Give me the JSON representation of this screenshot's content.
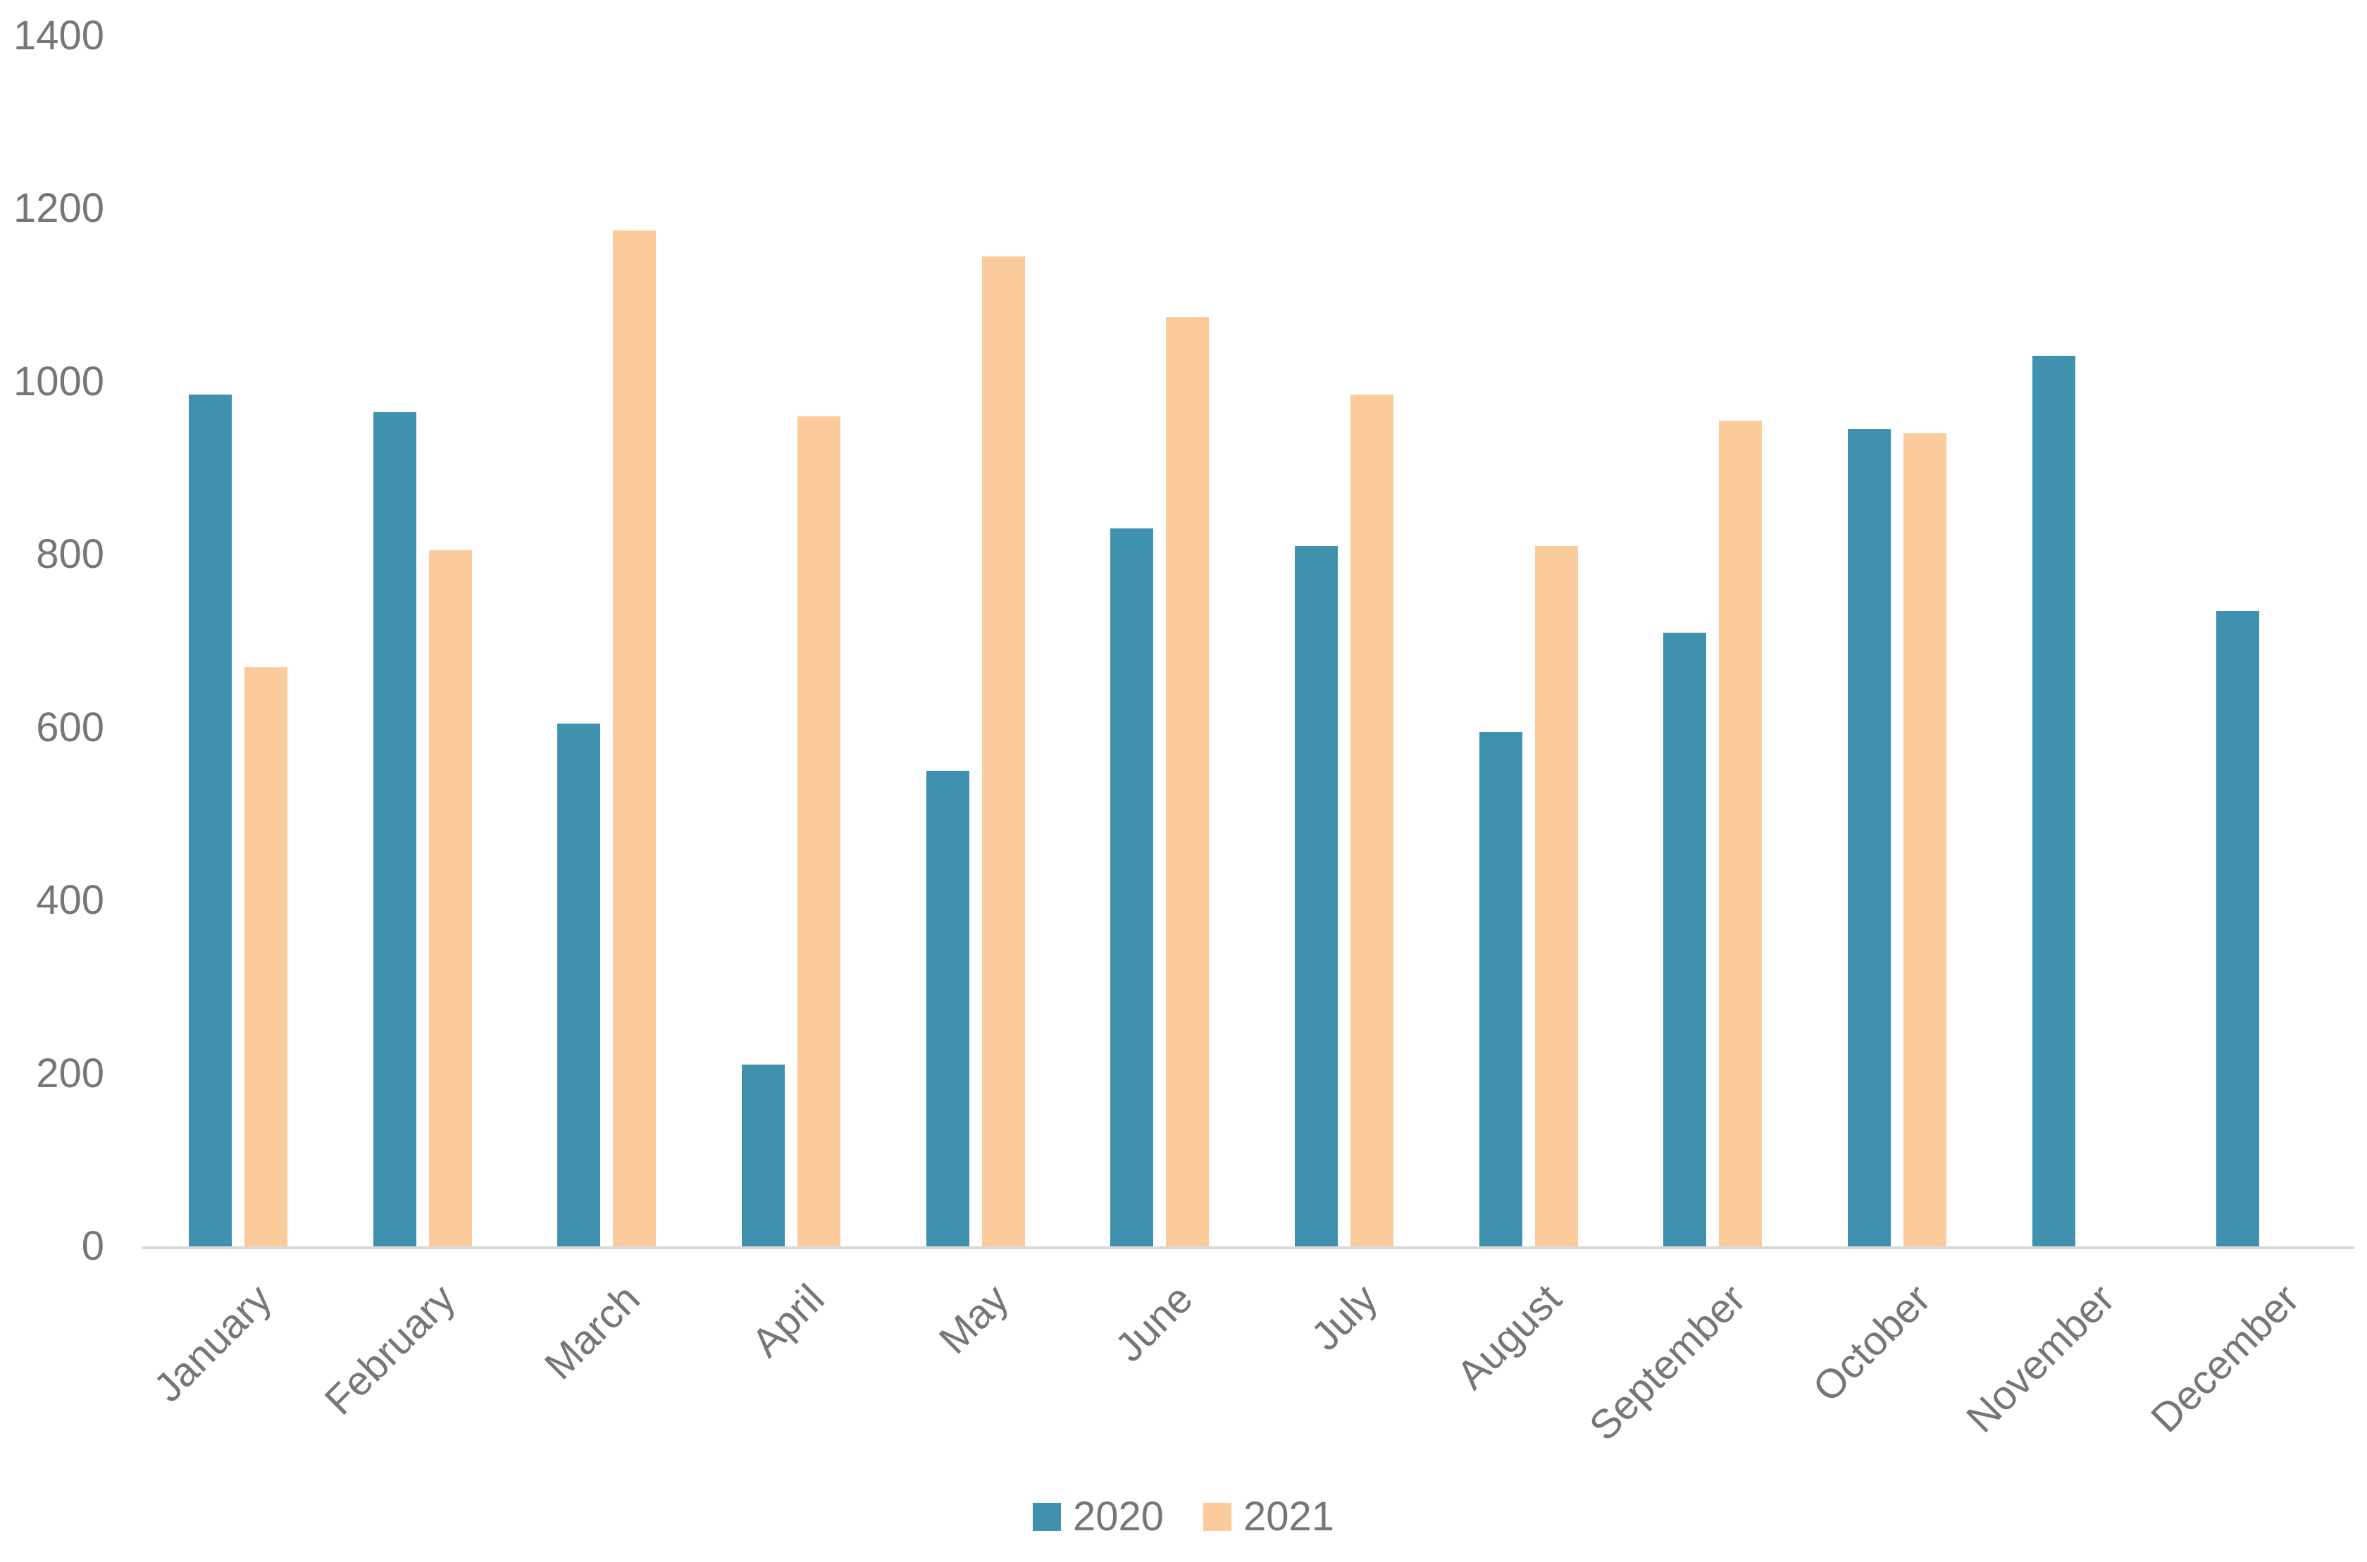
{
  "chart_data": {
    "type": "bar",
    "title": "",
    "xlabel": "",
    "ylabel": "",
    "categories": [
      "January",
      "February",
      "March",
      "April",
      "May",
      "June",
      "July",
      "August",
      "September",
      "October",
      "November",
      "December"
    ],
    "series": [
      {
        "name": "2020",
        "color": "#3F91AD",
        "values": [
          985,
          965,
          605,
          210,
          550,
          830,
          810,
          595,
          710,
          945,
          1030,
          735
        ]
      },
      {
        "name": "2021",
        "color": "#FCCB9B",
        "values": [
          670,
          805,
          1175,
          960,
          1145,
          1075,
          985,
          810,
          955,
          940,
          null,
          null
        ]
      }
    ],
    "ylim": [
      0,
      1400
    ],
    "yticks": [
      0,
      200,
      400,
      600,
      800,
      1000,
      1200,
      1400
    ],
    "grid": false,
    "legend_position": "bottom"
  },
  "legend": {
    "items": [
      {
        "label": "2020"
      },
      {
        "label": "2021"
      }
    ]
  },
  "styles": {
    "tick_text_color": "#767676",
    "axis_line_color": "#D9D9D9",
    "background": "#FFFFFF"
  }
}
